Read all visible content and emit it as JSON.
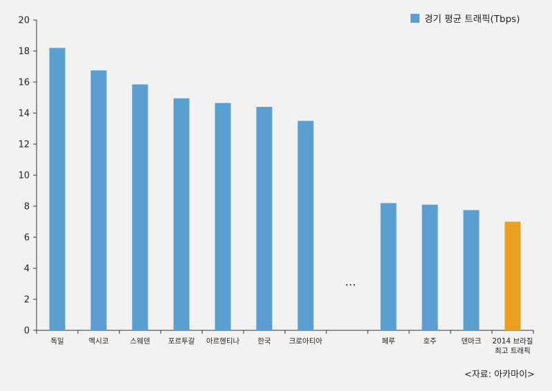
{
  "chart_data": {
    "type": "bar",
    "categories": [
      "독일",
      "멕시코",
      "스웨덴",
      "포르투갈",
      "아르헨티나",
      "한국",
      "크로아티아",
      "",
      "페루",
      "호주",
      "덴마크",
      "2014 브라질\n최고 트래픽"
    ],
    "series": [
      {
        "name": "경기 평균 트래픽(Tbps)",
        "values": [
          18.2,
          16.75,
          15.85,
          14.95,
          14.65,
          14.4,
          13.5,
          null,
          8.2,
          8.1,
          7.75,
          7.0
        ],
        "colors": [
          "#5a9fcf",
          "#5a9fcf",
          "#5a9fcf",
          "#5a9fcf",
          "#5a9fcf",
          "#5a9fcf",
          "#5a9fcf",
          null,
          "#5a9fcf",
          "#5a9fcf",
          "#5a9fcf",
          "#e8a020"
        ]
      }
    ],
    "ylim": [
      0,
      20
    ],
    "yticks": [
      0,
      2,
      4,
      6,
      8,
      10,
      12,
      14,
      16,
      18,
      20
    ],
    "legend_position": "top-right",
    "gap_marker": "…",
    "source": "<자료: 아카마이>",
    "grid": false
  },
  "colors": {
    "bar": "#5a9fcf",
    "highlight": "#e8a020",
    "axis": "#333333",
    "background": "#f2f2f2"
  }
}
